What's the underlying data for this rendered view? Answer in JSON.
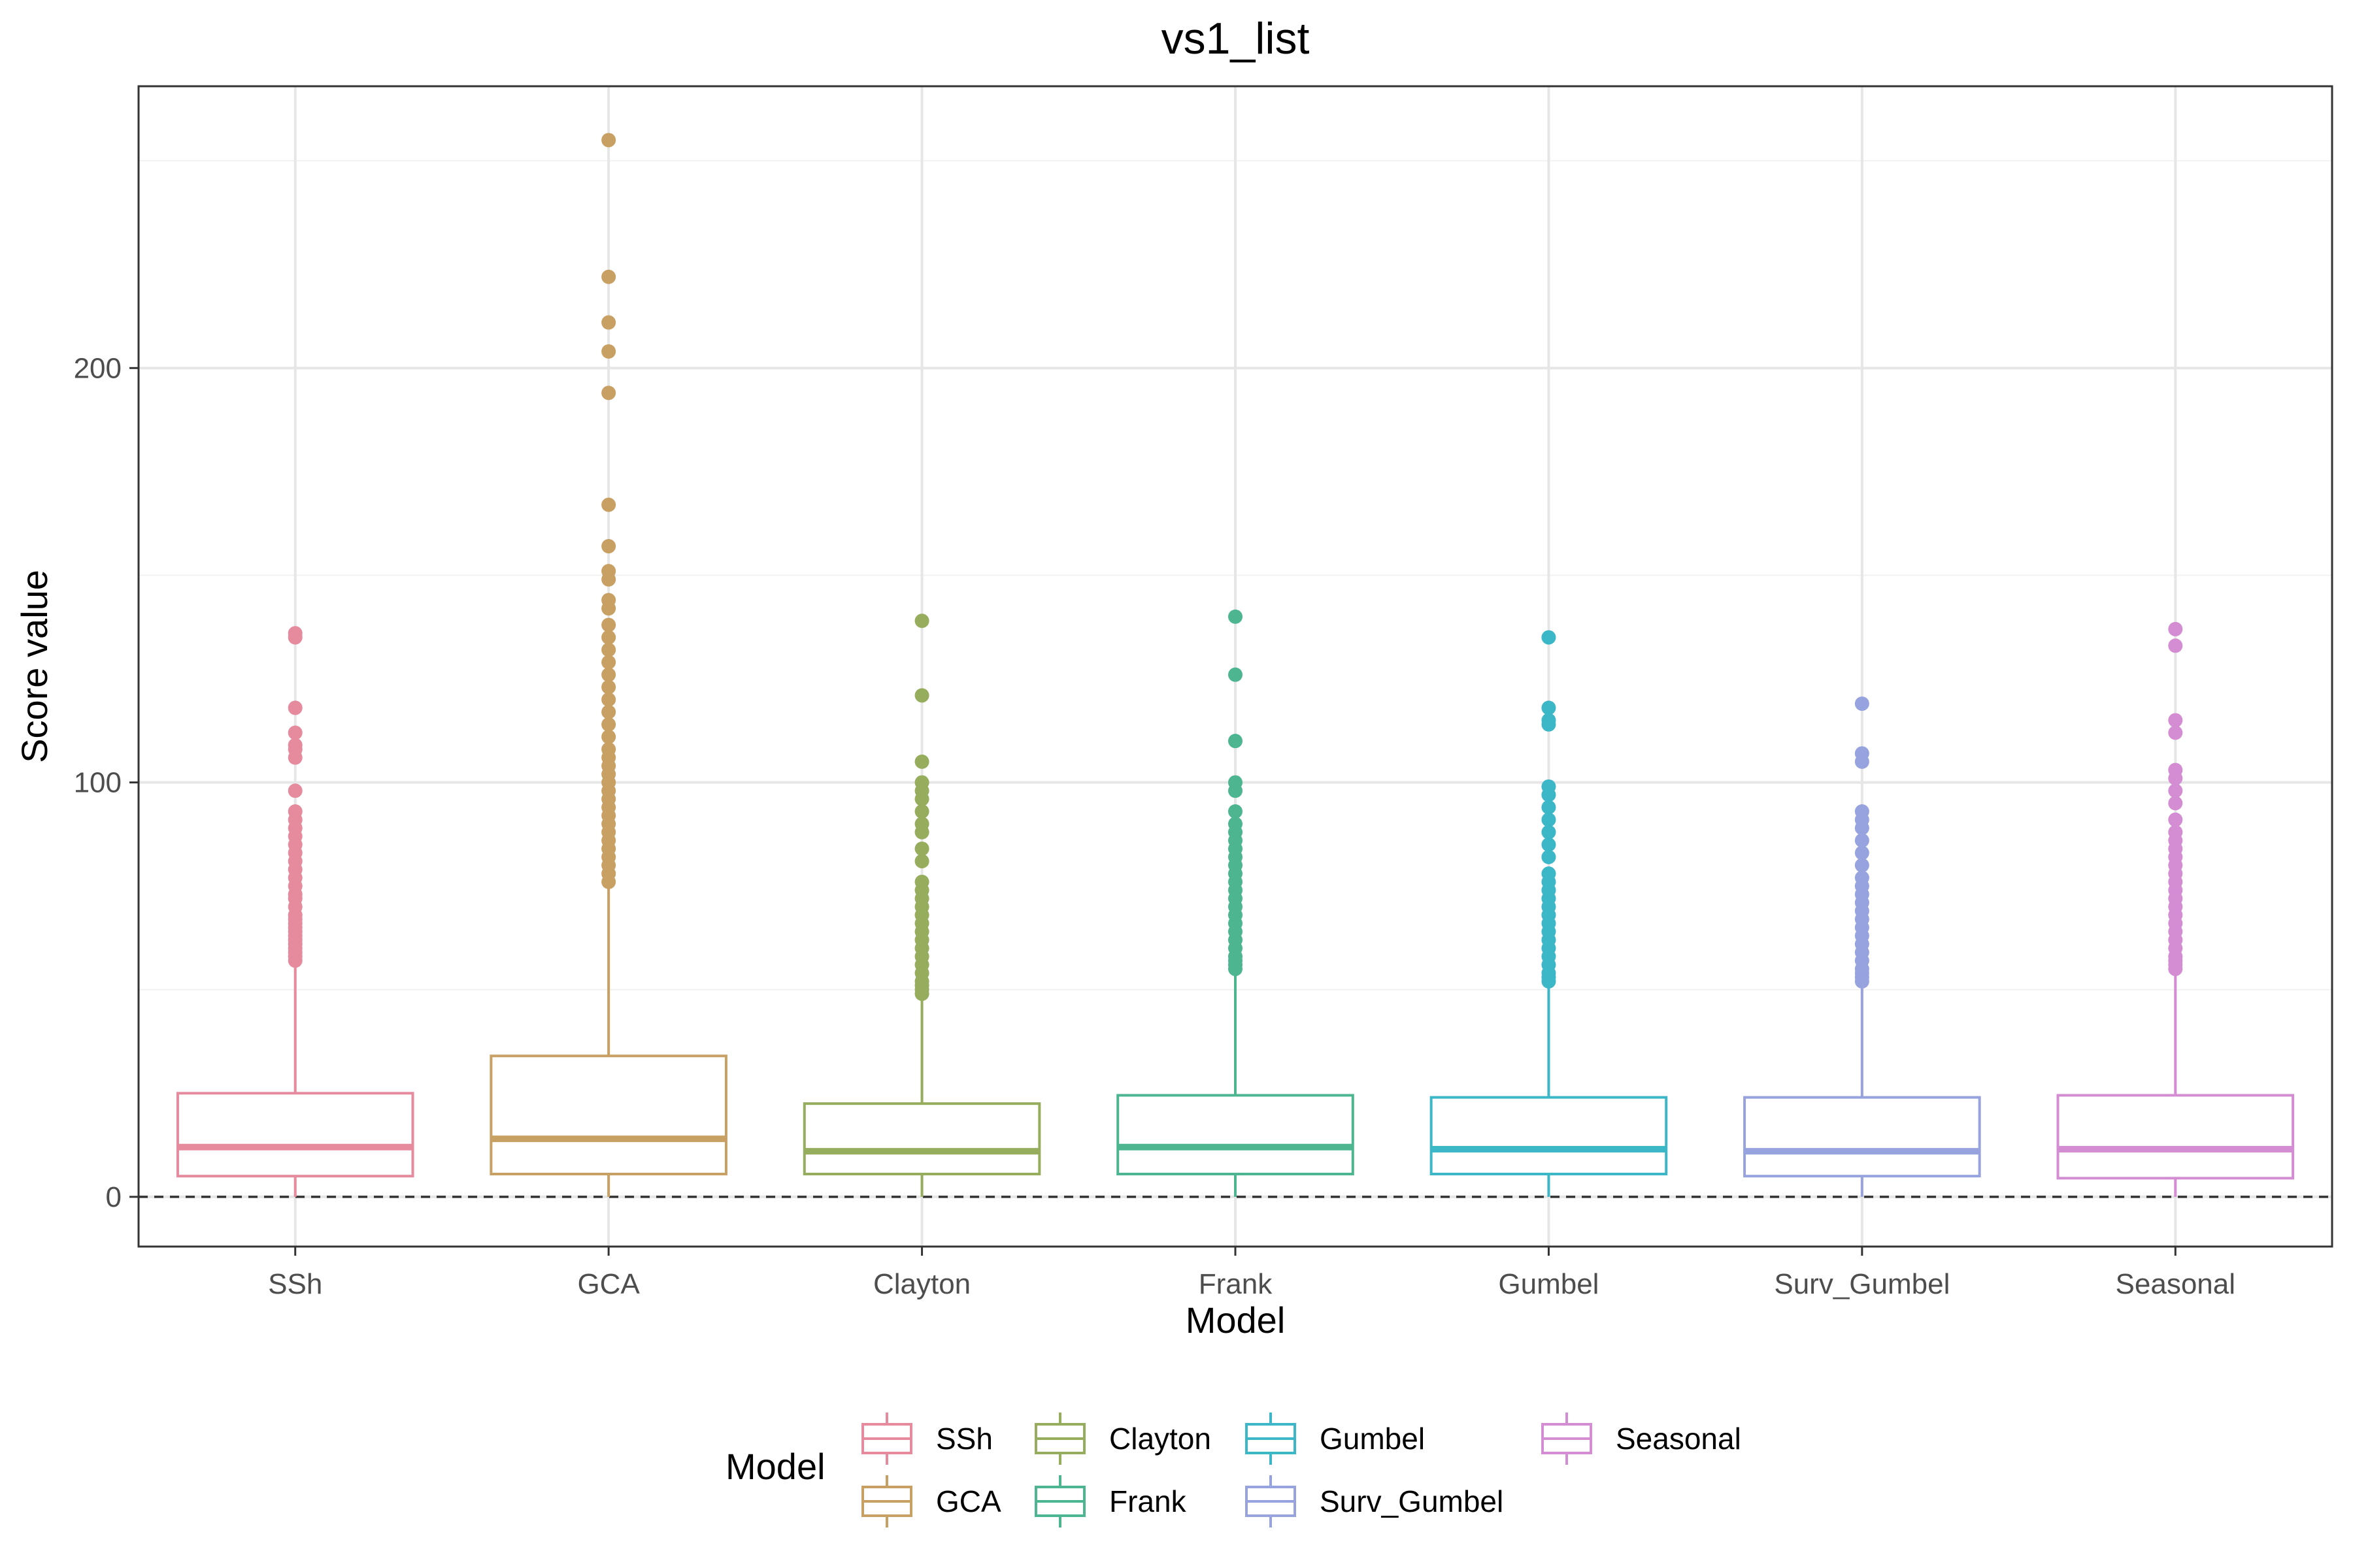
{
  "chart_data": {
    "type": "boxplot",
    "title": "vs1_list",
    "xlabel": "Model",
    "ylabel": "Score value",
    "ylim": [
      -12,
      268
    ],
    "y_ticks": [
      0,
      100,
      200
    ],
    "y_tick_labels": [
      "0",
      "100",
      "200"
    ],
    "reference_line": {
      "y": 0,
      "style": "dashed"
    },
    "grid": true,
    "legend": {
      "title": "Model",
      "position": "bottom",
      "entries": [
        "SSh",
        "GCA",
        "Clayton",
        "Frank",
        "Gumbel",
        "Surv_Gumbel",
        "Seasonal"
      ]
    },
    "categories": [
      "SSh",
      "GCA",
      "Clayton",
      "Frank",
      "Gumbel",
      "Surv_Gumbel",
      "Seasonal"
    ],
    "series": [
      {
        "name": "SSh",
        "color": "#E68A9E",
        "min": 0,
        "q1": 5,
        "median": 12,
        "q3": 25,
        "whisker_high": 57,
        "outliers": [
          57,
          58,
          59,
          60,
          61,
          62,
          63,
          64,
          65,
          66,
          67,
          68,
          70,
          72,
          73,
          75,
          77,
          79,
          81,
          83,
          85,
          87,
          89,
          91,
          93,
          98,
          106,
          108,
          109,
          112,
          118,
          135,
          136
        ]
      },
      {
        "name": "GCA",
        "color": "#C9A063",
        "min": 0,
        "q1": 5.5,
        "median": 14,
        "q3": 34,
        "whisker_high": 75,
        "outliers": [
          76,
          78,
          80,
          82,
          84,
          86,
          88,
          90,
          92,
          94,
          96,
          98,
          100,
          102,
          104,
          106,
          108,
          111,
          114,
          117,
          120,
          123,
          126,
          129,
          132,
          135,
          138,
          142,
          144,
          149,
          151,
          157,
          167,
          194,
          204,
          211,
          222,
          255
        ]
      },
      {
        "name": "Clayton",
        "color": "#97AD5E",
        "min": 0,
        "q1": 5.5,
        "median": 11,
        "q3": 22.5,
        "whisker_high": 48,
        "outliers": [
          49,
          50,
          51,
          52,
          54,
          56,
          58,
          60,
          62,
          64,
          66,
          68,
          70,
          72,
          74,
          76,
          81,
          84,
          88,
          90,
          93,
          96,
          98,
          100,
          105,
          121,
          139
        ]
      },
      {
        "name": "Frank",
        "color": "#4DB691",
        "min": 0,
        "q1": 5.5,
        "median": 12,
        "q3": 24.5,
        "whisker_high": 54,
        "outliers": [
          55,
          56,
          57,
          58,
          60,
          62,
          64,
          66,
          68,
          70,
          72,
          74,
          76,
          78,
          80,
          82,
          84,
          86,
          88,
          90,
          93,
          98,
          100,
          110,
          126,
          140
        ]
      },
      {
        "name": "Gumbel",
        "color": "#3CB7C7",
        "min": 0,
        "q1": 5.5,
        "median": 11.5,
        "q3": 24,
        "whisker_high": 51,
        "outliers": [
          52,
          53,
          54,
          56,
          58,
          60,
          62,
          64,
          66,
          68,
          70,
          72,
          74,
          76,
          78,
          82,
          85,
          88,
          91,
          94,
          97,
          99,
          114,
          115,
          118,
          135
        ]
      },
      {
        "name": "Surv_Gumbel",
        "color": "#97A3DF",
        "min": 0,
        "q1": 5,
        "median": 11,
        "q3": 24,
        "whisker_high": 51,
        "outliers": [
          52,
          53,
          54,
          55,
          57,
          59,
          61,
          63,
          65,
          67,
          69,
          71,
          73,
          75,
          77,
          80,
          83,
          86,
          89,
          91,
          93,
          105,
          107,
          119
        ]
      },
      {
        "name": "Seasonal",
        "color": "#D48DD3",
        "min": 0,
        "q1": 4.5,
        "median": 11.5,
        "q3": 24.5,
        "whisker_high": 54,
        "outliers": [
          55,
          56,
          57,
          58,
          60,
          62,
          64,
          66,
          68,
          70,
          72,
          74,
          76,
          78,
          80,
          82,
          84,
          86,
          88,
          91,
          95,
          98,
          101,
          103,
          112,
          115,
          133,
          137
        ]
      }
    ]
  }
}
